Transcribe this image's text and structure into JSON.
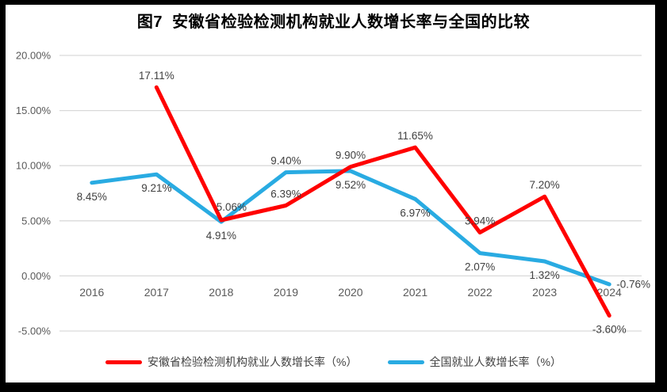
{
  "title": "图7  安徽省检验检测机构就业人数增长率与全国的比较",
  "colors": {
    "anhui_line": "#FF0000",
    "national_line": "#29ABE2",
    "gridline": "#D9D9D9",
    "axis_text": "#595959",
    "data_label_text": "#404040",
    "frame": "#000000",
    "background": "#FFFFFF"
  },
  "chart_data": {
    "type": "line",
    "categories": [
      "2016",
      "2017",
      "2018",
      "2019",
      "2020",
      "2021",
      "2022",
      "2023",
      "2024"
    ],
    "y_axis": {
      "range": [
        -5,
        20
      ],
      "grid": true,
      "ticks": [
        {
          "value": 20,
          "label": "20.00%"
        },
        {
          "value": 15,
          "label": "15.00%"
        },
        {
          "value": 10,
          "label": "10.00%"
        },
        {
          "value": 5,
          "label": "5.00%"
        },
        {
          "value": 0,
          "label": "0.00%"
        },
        {
          "value": -5,
          "label": "-5.00%"
        }
      ]
    },
    "series": [
      {
        "name": "安徽省检验检测机构就业人数增长率（%）",
        "color": "#FF0000",
        "values": [
          null,
          17.11,
          5.06,
          6.39,
          9.9,
          11.65,
          3.94,
          7.2,
          -3.6
        ],
        "point_labels": [
          null,
          "17.11%",
          "5.06%",
          "6.39%",
          "9.90%",
          "11.65%",
          "3.94%",
          "7.20%",
          "-3.60%"
        ],
        "label_pos": [
          null,
          "above",
          "above-right",
          "above",
          "above",
          "above",
          "above",
          "above",
          "below"
        ]
      },
      {
        "name": "全国就业人数增长率（%）",
        "color": "#29ABE2",
        "values": [
          8.45,
          9.21,
          4.91,
          9.4,
          9.52,
          6.97,
          2.07,
          1.32,
          -0.76
        ],
        "point_labels": [
          "8.45%",
          "9.21%",
          "4.91%",
          "9.40%",
          "9.52%",
          "6.97%",
          "2.07%",
          "1.32%",
          "-0.76%"
        ],
        "label_pos": [
          "below",
          "below",
          "below",
          "above",
          "below",
          "below",
          "below",
          "below",
          "right"
        ]
      }
    ],
    "legend_position": "bottom",
    "title": "图7  安徽省检验检测机构就业人数增长率与全国的比较"
  }
}
